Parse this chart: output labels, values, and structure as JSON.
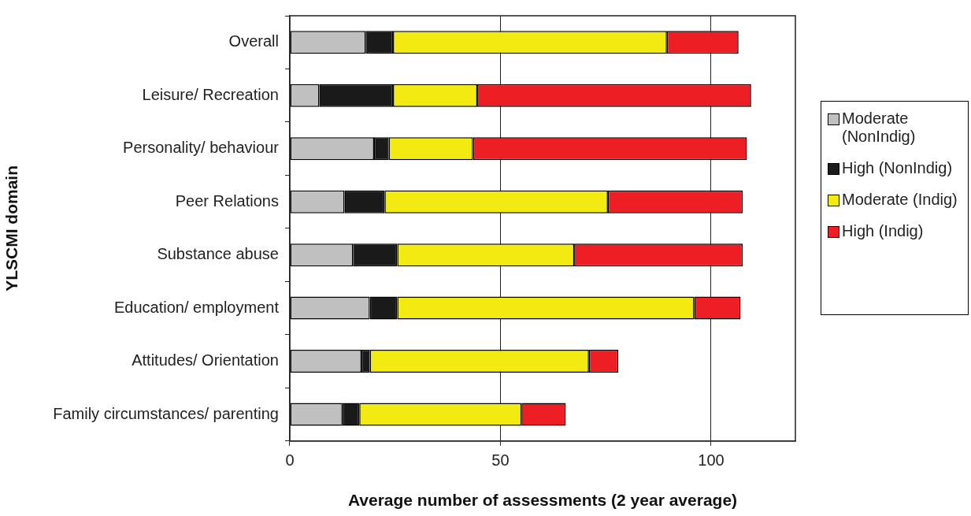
{
  "chart_data": {
    "type": "bar",
    "orientation": "horizontal",
    "stacked": true,
    "xlabel": "Average number of assessments (2 year average)",
    "ylabel": "YLSCMI domain",
    "categories": [
      "Overall",
      "Leisure/ Recreation",
      "Personality/ behaviour",
      "Peer Relations",
      "Substance abuse",
      "Education/ employment",
      "Attitudes/ Orientation",
      "Family circumstances/ parenting"
    ],
    "series": [
      {
        "name": "Moderate (NonIndig)",
        "color": "#c0c0c0",
        "values": [
          18,
          7,
          20,
          13,
          15,
          19,
          17,
          12.5
        ]
      },
      {
        "name": "High (NonIndig)",
        "color": "#1a1a1a",
        "values": [
          6.5,
          17.5,
          3.5,
          9.5,
          10.5,
          6.5,
          2,
          4
        ]
      },
      {
        "name": "Moderate (Indig)",
        "color": "#f2ea10",
        "values": [
          65,
          20,
          20,
          53,
          42,
          70.5,
          52,
          38.5
        ]
      },
      {
        "name": "High (Indig)",
        "color": "#ed1f24",
        "values": [
          17,
          65,
          65,
          32,
          40,
          11,
          7,
          10.5
        ]
      }
    ],
    "xlim": [
      0,
      120
    ],
    "xticks": [
      0,
      50,
      100
    ],
    "grid": "x",
    "legend": "right"
  }
}
